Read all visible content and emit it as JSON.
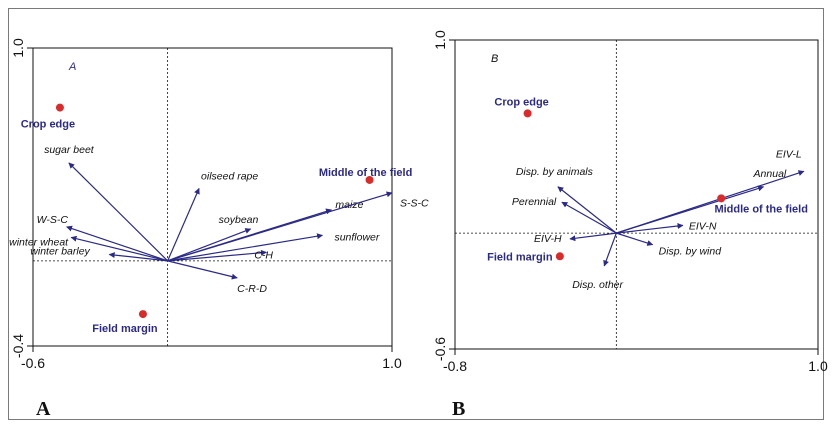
{
  "colors": {
    "arrow": "#2b2a86",
    "point": "#d92b2b",
    "sample_label": "#2b2a86",
    "text": "#111111",
    "axis": "#111111"
  },
  "figure_labels": [
    "A",
    "B"
  ],
  "chart_data": [
    {
      "type": "scatter",
      "panel_tag": "A",
      "xlim": [
        -0.6,
        1.0
      ],
      "ylim": [
        -0.4,
        1.0
      ],
      "x_ticks": [
        {
          "value": -0.6,
          "label": "-0.6"
        },
        {
          "value": 1.0,
          "label": "1.0"
        }
      ],
      "y_ticks": [
        {
          "value": -0.4,
          "label": "-0.4"
        },
        {
          "value": 1.0,
          "label": "1.0"
        }
      ],
      "origin": [
        0,
        0
      ],
      "vectors": [
        {
          "label": "sugar beet",
          "x": -0.44,
          "y": 0.46
        },
        {
          "label": "oilseed rape",
          "x": 0.14,
          "y": 0.34
        },
        {
          "label": "W-S-C",
          "x": -0.45,
          "y": 0.16
        },
        {
          "label": "winter wheat",
          "x": -0.43,
          "y": 0.11
        },
        {
          "label": "winter barley",
          "x": -0.26,
          "y": 0.03
        },
        {
          "label": "soybean",
          "x": 0.37,
          "y": 0.15
        },
        {
          "label": "maize",
          "x": 0.73,
          "y": 0.24
        },
        {
          "label": "S-S-C",
          "x": 1.0,
          "y": 0.32
        },
        {
          "label": "sunflower",
          "x": 0.69,
          "y": 0.12
        },
        {
          "label": "C-H",
          "x": 0.44,
          "y": 0.04
        },
        {
          "label": "C-R-D",
          "x": 0.31,
          "y": -0.08
        }
      ],
      "samples": [
        {
          "label": "Crop edge",
          "x": -0.48,
          "y": 0.72
        },
        {
          "label": "Middle of the field",
          "x": 0.9,
          "y": 0.38
        },
        {
          "label": "Field margin",
          "x": -0.11,
          "y": -0.25
        }
      ]
    },
    {
      "type": "scatter",
      "panel_tag": "B",
      "xlim": [
        -0.8,
        1.0
      ],
      "ylim": [
        -0.6,
        1.0
      ],
      "x_ticks": [
        {
          "value": -0.8,
          "label": "-0.8"
        },
        {
          "value": 1.0,
          "label": "1.0"
        }
      ],
      "y_ticks": [
        {
          "value": -0.6,
          "label": "-0.6"
        },
        {
          "value": 1.0,
          "label": "1.0"
        }
      ],
      "origin": [
        0,
        0
      ],
      "vectors": [
        {
          "label": "Disp. by animals",
          "x": -0.29,
          "y": 0.24
        },
        {
          "label": "Perennial",
          "x": -0.27,
          "y": 0.16
        },
        {
          "label": "EIV-H",
          "x": -0.23,
          "y": -0.03
        },
        {
          "label": "Disp. other",
          "x": -0.06,
          "y": -0.17
        },
        {
          "label": "Disp. by wind",
          "x": 0.18,
          "y": -0.06
        },
        {
          "label": "EIV-N",
          "x": 0.33,
          "y": 0.04
        },
        {
          "label": "Annual",
          "x": 0.73,
          "y": 0.24
        },
        {
          "label": "EIV-L",
          "x": 0.93,
          "y": 0.32
        }
      ],
      "samples": [
        {
          "label": "Crop edge",
          "x": -0.44,
          "y": 0.62
        },
        {
          "label": "Middle of the field",
          "x": 0.52,
          "y": 0.18
        },
        {
          "label": "Field margin",
          "x": -0.28,
          "y": -0.12
        }
      ]
    }
  ]
}
